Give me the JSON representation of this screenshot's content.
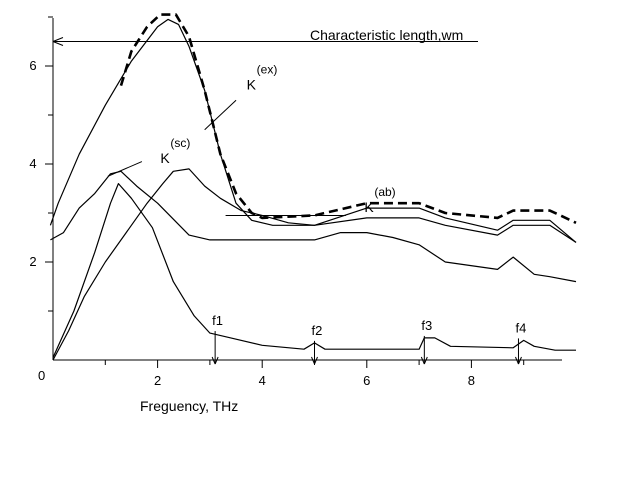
{
  "chart_data": {
    "type": "line",
    "title": "",
    "xlabel": "Freguency, THz",
    "ylabel": "",
    "xlim": [
      0,
      10
    ],
    "ylim": [
      0,
      7
    ],
    "origin_label": "0",
    "x_ticks": [
      {
        "value": 2,
        "label": "2"
      },
      {
        "value": 4,
        "label": "4"
      },
      {
        "value": 6,
        "label": "6"
      },
      {
        "value": 8,
        "label": "8"
      }
    ],
    "y_ticks": [
      {
        "value": 2,
        "label": "2"
      },
      {
        "value": 4,
        "label": "4"
      },
      {
        "value": 6,
        "label": "6"
      }
    ],
    "reference_line": {
      "label": "Characteristic length,wm",
      "y": 6.5
    },
    "series": [
      {
        "key": "ex",
        "style": "dashed",
        "points": [
          [
            1.3,
            5.6
          ],
          [
            1.5,
            6.3
          ],
          [
            1.8,
            6.8
          ],
          [
            2.05,
            7.05
          ],
          [
            2.35,
            7.05
          ],
          [
            2.6,
            6.6
          ],
          [
            2.9,
            5.5
          ],
          [
            3.2,
            4.2
          ],
          [
            3.5,
            3.4
          ],
          [
            3.8,
            3.0
          ],
          [
            4.0,
            2.9
          ],
          [
            5.0,
            2.95
          ],
          [
            6.0,
            3.2
          ],
          [
            7.0,
            3.2
          ],
          [
            7.5,
            3.0
          ],
          [
            8.5,
            2.9
          ],
          [
            8.8,
            3.05
          ],
          [
            9.5,
            3.05
          ],
          [
            9.7,
            2.95
          ],
          [
            10.0,
            2.8
          ]
        ],
        "label": {
          "text": "K",
          "sup": "(ex)",
          "at": [
            3.55,
            5.6
          ]
        }
      },
      {
        "key": "ex_solid",
        "style": "solid",
        "points": [
          [
            -0.05,
            2.75
          ],
          [
            0.1,
            3.2
          ],
          [
            0.5,
            4.2
          ],
          [
            1.0,
            5.2
          ],
          [
            1.5,
            6.1
          ],
          [
            2.0,
            6.8
          ],
          [
            2.2,
            6.95
          ],
          [
            2.4,
            6.85
          ],
          [
            2.6,
            6.4
          ],
          [
            2.9,
            5.5
          ],
          [
            3.2,
            4.2
          ],
          [
            3.5,
            3.2
          ],
          [
            3.8,
            2.85
          ],
          [
            4.2,
            2.75
          ],
          [
            5.0,
            2.75
          ],
          [
            6.0,
            3.1
          ],
          [
            7.0,
            3.1
          ],
          [
            7.5,
            2.9
          ],
          [
            8.5,
            2.65
          ],
          [
            8.8,
            2.85
          ],
          [
            9.5,
            2.85
          ],
          [
            10.0,
            2.4
          ]
        ]
      },
      {
        "key": "sc",
        "style": "solid",
        "points": [
          [
            -0.05,
            2.45
          ],
          [
            0.2,
            2.6
          ],
          [
            0.5,
            3.1
          ],
          [
            0.8,
            3.4
          ],
          [
            1.1,
            3.8
          ],
          [
            1.3,
            3.85
          ],
          [
            1.6,
            3.55
          ],
          [
            2.0,
            3.2
          ],
          [
            2.6,
            2.55
          ],
          [
            3.0,
            2.45
          ],
          [
            4.0,
            2.45
          ],
          [
            4.5,
            2.45
          ],
          [
            5.0,
            2.45
          ],
          [
            5.5,
            2.6
          ],
          [
            6.0,
            2.6
          ],
          [
            6.5,
            2.5
          ],
          [
            7.0,
            2.35
          ],
          [
            7.5,
            2.0
          ],
          [
            8.5,
            1.85
          ],
          [
            8.8,
            2.1
          ],
          [
            9.2,
            1.75
          ],
          [
            9.5,
            1.7
          ],
          [
            10.0,
            1.6
          ]
        ],
        "label": {
          "text": "K",
          "sup": "(sc)",
          "at": [
            1.9,
            4.1
          ]
        }
      },
      {
        "key": "ab",
        "style": "solid",
        "points": [
          [
            0.0,
            0.0
          ],
          [
            0.3,
            0.6
          ],
          [
            0.6,
            1.3
          ],
          [
            1.0,
            2.0
          ],
          [
            1.4,
            2.6
          ],
          [
            1.8,
            3.2
          ],
          [
            2.1,
            3.6
          ],
          [
            2.3,
            3.85
          ],
          [
            2.6,
            3.9
          ],
          [
            2.9,
            3.55
          ],
          [
            3.2,
            3.3
          ],
          [
            3.6,
            3.05
          ],
          [
            4.0,
            2.95
          ],
          [
            4.5,
            2.8
          ],
          [
            5.0,
            2.75
          ],
          [
            6.0,
            2.9
          ],
          [
            7.0,
            2.9
          ],
          [
            7.5,
            2.75
          ],
          [
            8.5,
            2.55
          ],
          [
            8.8,
            2.75
          ],
          [
            9.5,
            2.75
          ],
          [
            10.0,
            2.4
          ]
        ],
        "label": {
          "text": "K",
          "sup": "(ab)",
          "at": [
            5.8,
            3.1
          ]
        }
      },
      {
        "key": "base",
        "style": "solid",
        "points": [
          [
            0.0,
            0.05
          ],
          [
            0.4,
            1.0
          ],
          [
            0.8,
            2.2
          ],
          [
            1.1,
            3.2
          ],
          [
            1.25,
            3.6
          ],
          [
            1.5,
            3.3
          ],
          [
            1.9,
            2.7
          ],
          [
            2.3,
            1.6
          ],
          [
            2.7,
            0.9
          ],
          [
            3.0,
            0.55
          ],
          [
            3.4,
            0.45
          ],
          [
            4.0,
            0.3
          ],
          [
            4.8,
            0.22
          ],
          [
            5.0,
            0.35
          ],
          [
            5.2,
            0.22
          ],
          [
            7.0,
            0.22
          ],
          [
            7.1,
            0.45
          ],
          [
            7.3,
            0.45
          ],
          [
            7.6,
            0.28
          ],
          [
            8.8,
            0.25
          ],
          [
            9.0,
            0.4
          ],
          [
            9.2,
            0.28
          ],
          [
            9.6,
            0.2
          ],
          [
            10.0,
            0.2
          ]
        ]
      }
    ],
    "markers": [
      {
        "label": "f1",
        "x": 3.1,
        "y": 0.55
      },
      {
        "label": "f2",
        "x": 5.0,
        "y": 0.35
      },
      {
        "label": "f3",
        "x": 7.1,
        "y": 0.45
      },
      {
        "label": "f4",
        "x": 8.9,
        "y": 0.4
      }
    ]
  }
}
